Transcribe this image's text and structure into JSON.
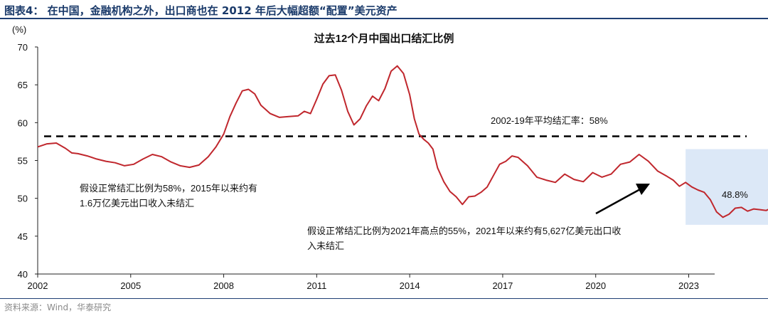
{
  "header": {
    "figure_title": "图表4：  在中国，金融机构之外，出口商也在 2012 年后大幅超额“配置”美元资产"
  },
  "footer": {
    "source": "资料来源：Wind，华泰研究"
  },
  "chart_data": {
    "type": "line",
    "title": "过去12个月中国出口结汇比例",
    "ylabel": "(%)",
    "xlabel": "",
    "ylim": [
      40,
      70
    ],
    "yticks": [
      40,
      45,
      50,
      55,
      60,
      65,
      70
    ],
    "xlim": [
      2002,
      2026.2
    ],
    "xticks": [
      2002,
      2005,
      2008,
      2011,
      2014,
      2017,
      2020,
      2023
    ],
    "grid": false,
    "legend": "none",
    "colors": {
      "line": "#c0272d",
      "reference": "#000000",
      "highlight": "#dce8f7",
      "arrow": "#000000"
    },
    "series": [
      {
        "x": [
          2002.0,
          2002.3,
          2002.6,
          2002.9,
          2003.1,
          2003.3,
          2003.6,
          2003.9,
          2004.2,
          2004.5,
          2004.8,
          2005.1,
          2005.4,
          2005.7,
          2006.0,
          2006.3,
          2006.6,
          2006.9,
          2007.2,
          2007.5,
          2007.75,
          2008.0,
          2008.2,
          2008.4,
          2008.6,
          2008.8,
          2009.0,
          2009.2,
          2009.5,
          2009.8,
          2010.1,
          2010.4,
          2010.6,
          2010.8,
          2011.0,
          2011.2,
          2011.4,
          2011.6,
          2011.8,
          2012.0,
          2012.2,
          2012.4,
          2012.6,
          2012.8,
          2013.0,
          2013.2,
          2013.4,
          2013.6,
          2013.8,
          2014.0,
          2014.15,
          2014.3,
          2014.45,
          2014.6,
          2014.75,
          2014.9,
          2015.1,
          2015.3,
          2015.5,
          2015.7,
          2015.9,
          2016.1,
          2016.3,
          2016.5,
          2016.7,
          2016.9,
          2017.1,
          2017.3,
          2017.5,
          2017.8,
          2018.1,
          2018.4,
          2018.7,
          2019.0,
          2019.3,
          2019.6,
          2019.9,
          2020.2,
          2020.5,
          2020.8,
          2021.1,
          2021.4,
          2021.7,
          2022.0,
          2022.3,
          2022.5,
          2022.7,
          2022.9,
          2023.1,
          2023.3,
          2023.5,
          2023.7,
          2023.9,
          2024.1,
          2024.3,
          2024.5,
          2024.7,
          2024.9,
          2025.1,
          2025.3,
          2025.5,
          2025.7
        ],
        "y": [
          56.8,
          57.2,
          57.3,
          56.6,
          56.0,
          55.9,
          55.6,
          55.2,
          54.9,
          54.7,
          54.3,
          54.5,
          55.2,
          55.8,
          55.5,
          54.8,
          54.3,
          54.1,
          54.4,
          55.5,
          56.8,
          58.5,
          60.8,
          62.6,
          64.2,
          64.4,
          63.8,
          62.3,
          61.2,
          60.7,
          60.8,
          60.9,
          61.5,
          61.2,
          63.1,
          65.1,
          66.2,
          66.3,
          64.3,
          61.5,
          59.7,
          60.5,
          62.2,
          63.5,
          62.9,
          64.5,
          66.8,
          67.5,
          66.5,
          63.7,
          60.5,
          58.5,
          57.8,
          57.3,
          56.5,
          54.0,
          52.2,
          50.9,
          50.2,
          49.2,
          50.2,
          50.3,
          50.8,
          51.5,
          53.0,
          54.5,
          54.9,
          55.6,
          55.4,
          54.3,
          52.8,
          52.4,
          52.1,
          53.2,
          52.5,
          52.2,
          53.4,
          52.8,
          53.2,
          54.5,
          54.8,
          55.8,
          54.9,
          53.6,
          52.9,
          52.4,
          51.6,
          52.1,
          51.5,
          51.1,
          50.8,
          49.8,
          48.2,
          47.5,
          47.9,
          48.7,
          48.8,
          48.3,
          48.6,
          48.5,
          48.4,
          48.8
        ]
      }
    ],
    "reference_line": {
      "label": "2002-19年平均结汇率：58%",
      "y": 58.2
    },
    "highlight_region": {
      "x": [
        2022.9,
        2026.0
      ],
      "y": [
        46.5,
        56.5
      ]
    },
    "annotations": [
      {
        "text": "假设正常结汇比例为58%，2015年以来约有",
        "text2": "1.6万亿美元出口收入未结汇"
      },
      {
        "text": "假设正常结汇比例为2021年高点的55%，2021年以来约有5,627亿美元出口收",
        "text2": "入未结汇"
      },
      {
        "text": "48.8%"
      }
    ]
  }
}
